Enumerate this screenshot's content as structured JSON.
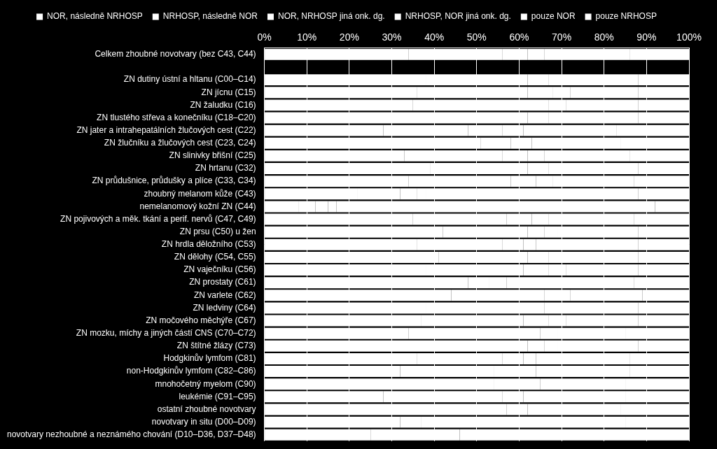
{
  "chart_data": {
    "type": "bar",
    "orientation": "horizontal",
    "stacked": true,
    "grid": true,
    "legend": "top",
    "categories": [
      "Celkem zhoubné novotvary (bez C43, C44)",
      null,
      "ZN dutiny ústní a hltanu (C00–C14)",
      "ZN jícnu (C15)",
      "ZN žaludku (C16)",
      "ZN tlustého střeva a konečníku (C18–C20)",
      "ZN jater a intrahepatálních žlučových cest (C22)",
      "ZN žlučníku a žlučových cest (C23, C24)",
      "ZN slinivky břišní (C25)",
      "ZN hrtanu (C32)",
      "ZN průdušnice, průdušky a plíce (C33, C34)",
      "zhoubný melanom kůže (C43)",
      "nemelanomový kožní ZN (C44)",
      "ZN pojivových a měk. tkání a perif. nervů (C47, C49)",
      "ZN prsu (C50) u žen",
      "ZN hrdla děložního (C53)",
      "ZN dělohy (C54, C55)",
      "ZN vaječníku (C56)",
      "ZN prostaty (C61)",
      "ZN varlete (C62)",
      "ZN ledviny (C64)",
      "ZN močového měchýře (C67)",
      "ZN mozku, míchy a jiných částí CNS (C70–C72)",
      "ZN štítné žlázy (C73)",
      "Hodgkinův lymfom (C81)",
      "non-Hodgkinův lymfom (C82–C86)",
      "mnohočetný myelom (C90)",
      "leukémie (C91–C95)",
      "ostatní zhoubné novotvary",
      "novotvary in situ (D00–D09)",
      "novotvary nezhoubné a neznámého chování (D10–D36, D37–D48)"
    ],
    "series": [
      {
        "name": "NOR, následně NRHOSP",
        "color": "#ffffff",
        "values": [
          34,
          null,
          38,
          36,
          35,
          40,
          28,
          30,
          33,
          39,
          34,
          22,
          8,
          35,
          42,
          36,
          41,
          38,
          30,
          44,
          38,
          37,
          34,
          40,
          36,
          32,
          30,
          28,
          30,
          20,
          25
        ]
      },
      {
        "name": "NRHOSP, následně NOR",
        "color": "#ffffff",
        "values": [
          22,
          null,
          24,
          26,
          25,
          22,
          20,
          21,
          23,
          23,
          24,
          10,
          4,
          22,
          20,
          20,
          21,
          23,
          18,
          22,
          22,
          24,
          26,
          22,
          20,
          22,
          24,
          22,
          20,
          12,
          15
        ]
      },
      {
        "name": "NOR, NRHOSP jiná onk. dg.",
        "color": "#ffffff",
        "values": [
          6,
          null,
          5,
          6,
          7,
          5,
          8,
          7,
          6,
          5,
          6,
          4,
          3,
          6,
          4,
          5,
          5,
          6,
          5,
          4,
          6,
          6,
          5,
          4,
          5,
          6,
          6,
          6,
          7,
          5,
          6
        ]
      },
      {
        "name": "NRHOSP, NOR jiná onk. dg.",
        "color": "#ffffff",
        "values": [
          4,
          null,
          3,
          4,
          4,
          3,
          5,
          5,
          4,
          3,
          4,
          2,
          2,
          4,
          3,
          3,
          3,
          4,
          4,
          2,
          4,
          4,
          4,
          3,
          3,
          4,
          5,
          5,
          5,
          3,
          4
        ]
      },
      {
        "name": "pouze NOR",
        "color": "#ffffff",
        "values": [
          20,
          null,
          18,
          16,
          17,
          18,
          22,
          21,
          20,
          18,
          19,
          50,
          75,
          20,
          19,
          24,
          18,
          17,
          30,
          17,
          18,
          17,
          16,
          19,
          22,
          22,
          20,
          24,
          22,
          45,
          30
        ]
      },
      {
        "name": "pouze NRHOSP",
        "color": "#ffffff",
        "values": [
          14,
          null,
          12,
          12,
          12,
          12,
          17,
          16,
          14,
          12,
          13,
          12,
          8,
          13,
          12,
          12,
          12,
          12,
          13,
          11,
          12,
          12,
          15,
          12,
          14,
          14,
          15,
          15,
          16,
          15,
          20
        ]
      }
    ],
    "xlim": [
      0,
      100
    ],
    "xticks": [
      {
        "value": 0,
        "label": "0%"
      },
      {
        "value": 10,
        "label": "10%"
      },
      {
        "value": 20,
        "label": "20%"
      },
      {
        "value": 30,
        "label": "30%"
      },
      {
        "value": 40,
        "label": "40%"
      },
      {
        "value": 50,
        "label": "50%"
      },
      {
        "value": 60,
        "label": "60%"
      },
      {
        "value": 70,
        "label": "70%"
      },
      {
        "value": 80,
        "label": "80%"
      },
      {
        "value": 90,
        "label": "90%"
      },
      {
        "value": 100,
        "label": "100%"
      }
    ]
  }
}
